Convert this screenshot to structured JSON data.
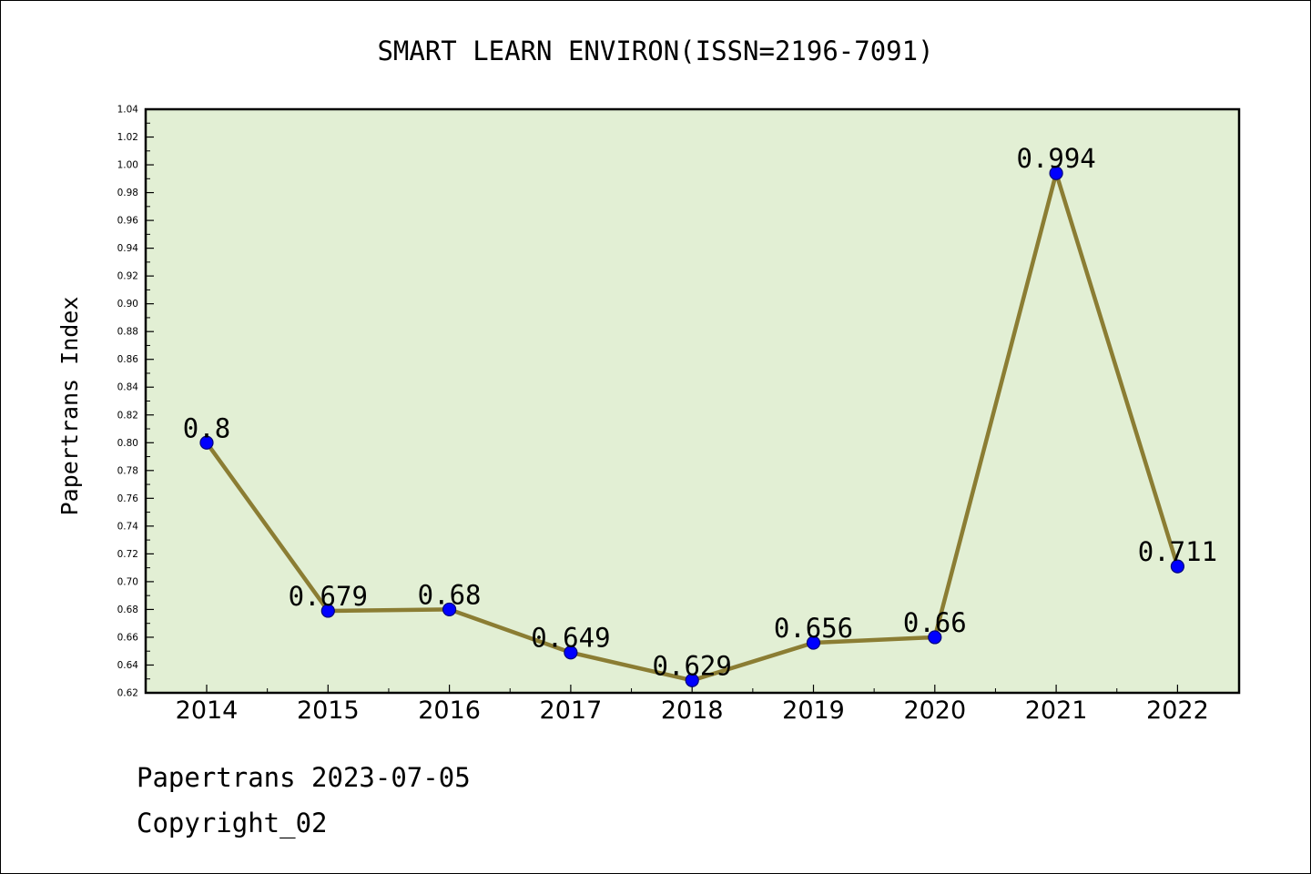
{
  "chart_data": {
    "type": "line",
    "title": "SMART LEARN ENVIRON(ISSN=2196-7091)",
    "xlabel": "",
    "ylabel": "Papertrans Index",
    "categories": [
      "2014",
      "2015",
      "2016",
      "2017",
      "2018",
      "2019",
      "2020",
      "2021",
      "2022"
    ],
    "values": [
      0.8,
      0.679,
      0.68,
      0.649,
      0.629,
      0.656,
      0.66,
      0.994,
      0.711
    ],
    "data_labels": [
      "0.8",
      "0.679",
      "0.68",
      "0.649",
      "0.629",
      "0.656",
      "0.66",
      "0.994",
      "0.711"
    ],
    "ylim": [
      0.62,
      1.04
    ],
    "yticks": [
      "0.62",
      "0.64",
      "0.66",
      "0.68",
      "0.70",
      "0.72",
      "0.74",
      "0.76",
      "0.78",
      "0.80",
      "0.82",
      "0.84",
      "0.86",
      "0.88",
      "0.90",
      "0.92",
      "0.94",
      "0.96",
      "0.98",
      "1.00",
      "1.02",
      "1.04"
    ],
    "grid": false,
    "colors": {
      "line": "#8b7d33",
      "marker": "#0000ff",
      "plot_background": "#e2efd4"
    }
  },
  "footer": {
    "date_line": "Papertrans 2023-07-05",
    "copyright": "Copyright_02"
  }
}
